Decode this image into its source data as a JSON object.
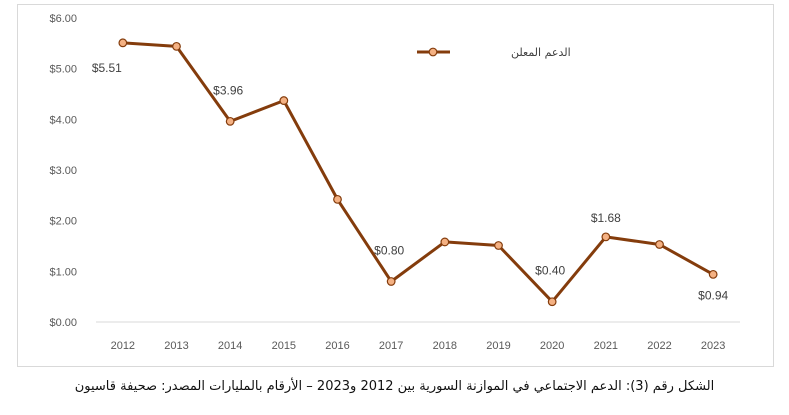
{
  "chart_data": {
    "type": "line",
    "title": "",
    "xlabel": "",
    "ylabel": "",
    "categories": [
      "2012",
      "2013",
      "2014",
      "2015",
      "2016",
      "2017",
      "2018",
      "2019",
      "2020",
      "2021",
      "2022",
      "2023"
    ],
    "series": [
      {
        "name": "الدعم المعلن",
        "values": [
          5.51,
          5.44,
          3.96,
          4.37,
          2.42,
          0.8,
          1.58,
          1.51,
          0.4,
          1.68,
          1.53,
          0.94
        ]
      }
    ],
    "ylim": [
      0,
      6
    ],
    "yticks": [
      0,
      1,
      2,
      3,
      4,
      5,
      6
    ],
    "ytick_labels": [
      "$0.00",
      "$1.00",
      "$2.00",
      "$3.00",
      "$4.00",
      "$5.00",
      "$6.00"
    ],
    "data_labels": [
      {
        "index": 0,
        "text": "$5.51"
      },
      {
        "index": 2,
        "text": "$3.96"
      },
      {
        "index": 5,
        "text": "$0.80"
      },
      {
        "index": 8,
        "text": "$0.40"
      },
      {
        "index": 9,
        "text": "$1.68"
      },
      {
        "index": 11,
        "text": "$0.94"
      }
    ],
    "legend_position": "top-right",
    "grid": false,
    "colors": {
      "line": "#843c0c",
      "marker_fill": "#f4b183",
      "marker_stroke": "#843c0c",
      "axis": "#d9d9d9"
    }
  },
  "caption": "الشكل رقم (3): الدعم الاجتماعي في الموازنة السورية بين 2012 و2023 – الأرقام بالمليارات المصدر: صحيفة قاسيون"
}
